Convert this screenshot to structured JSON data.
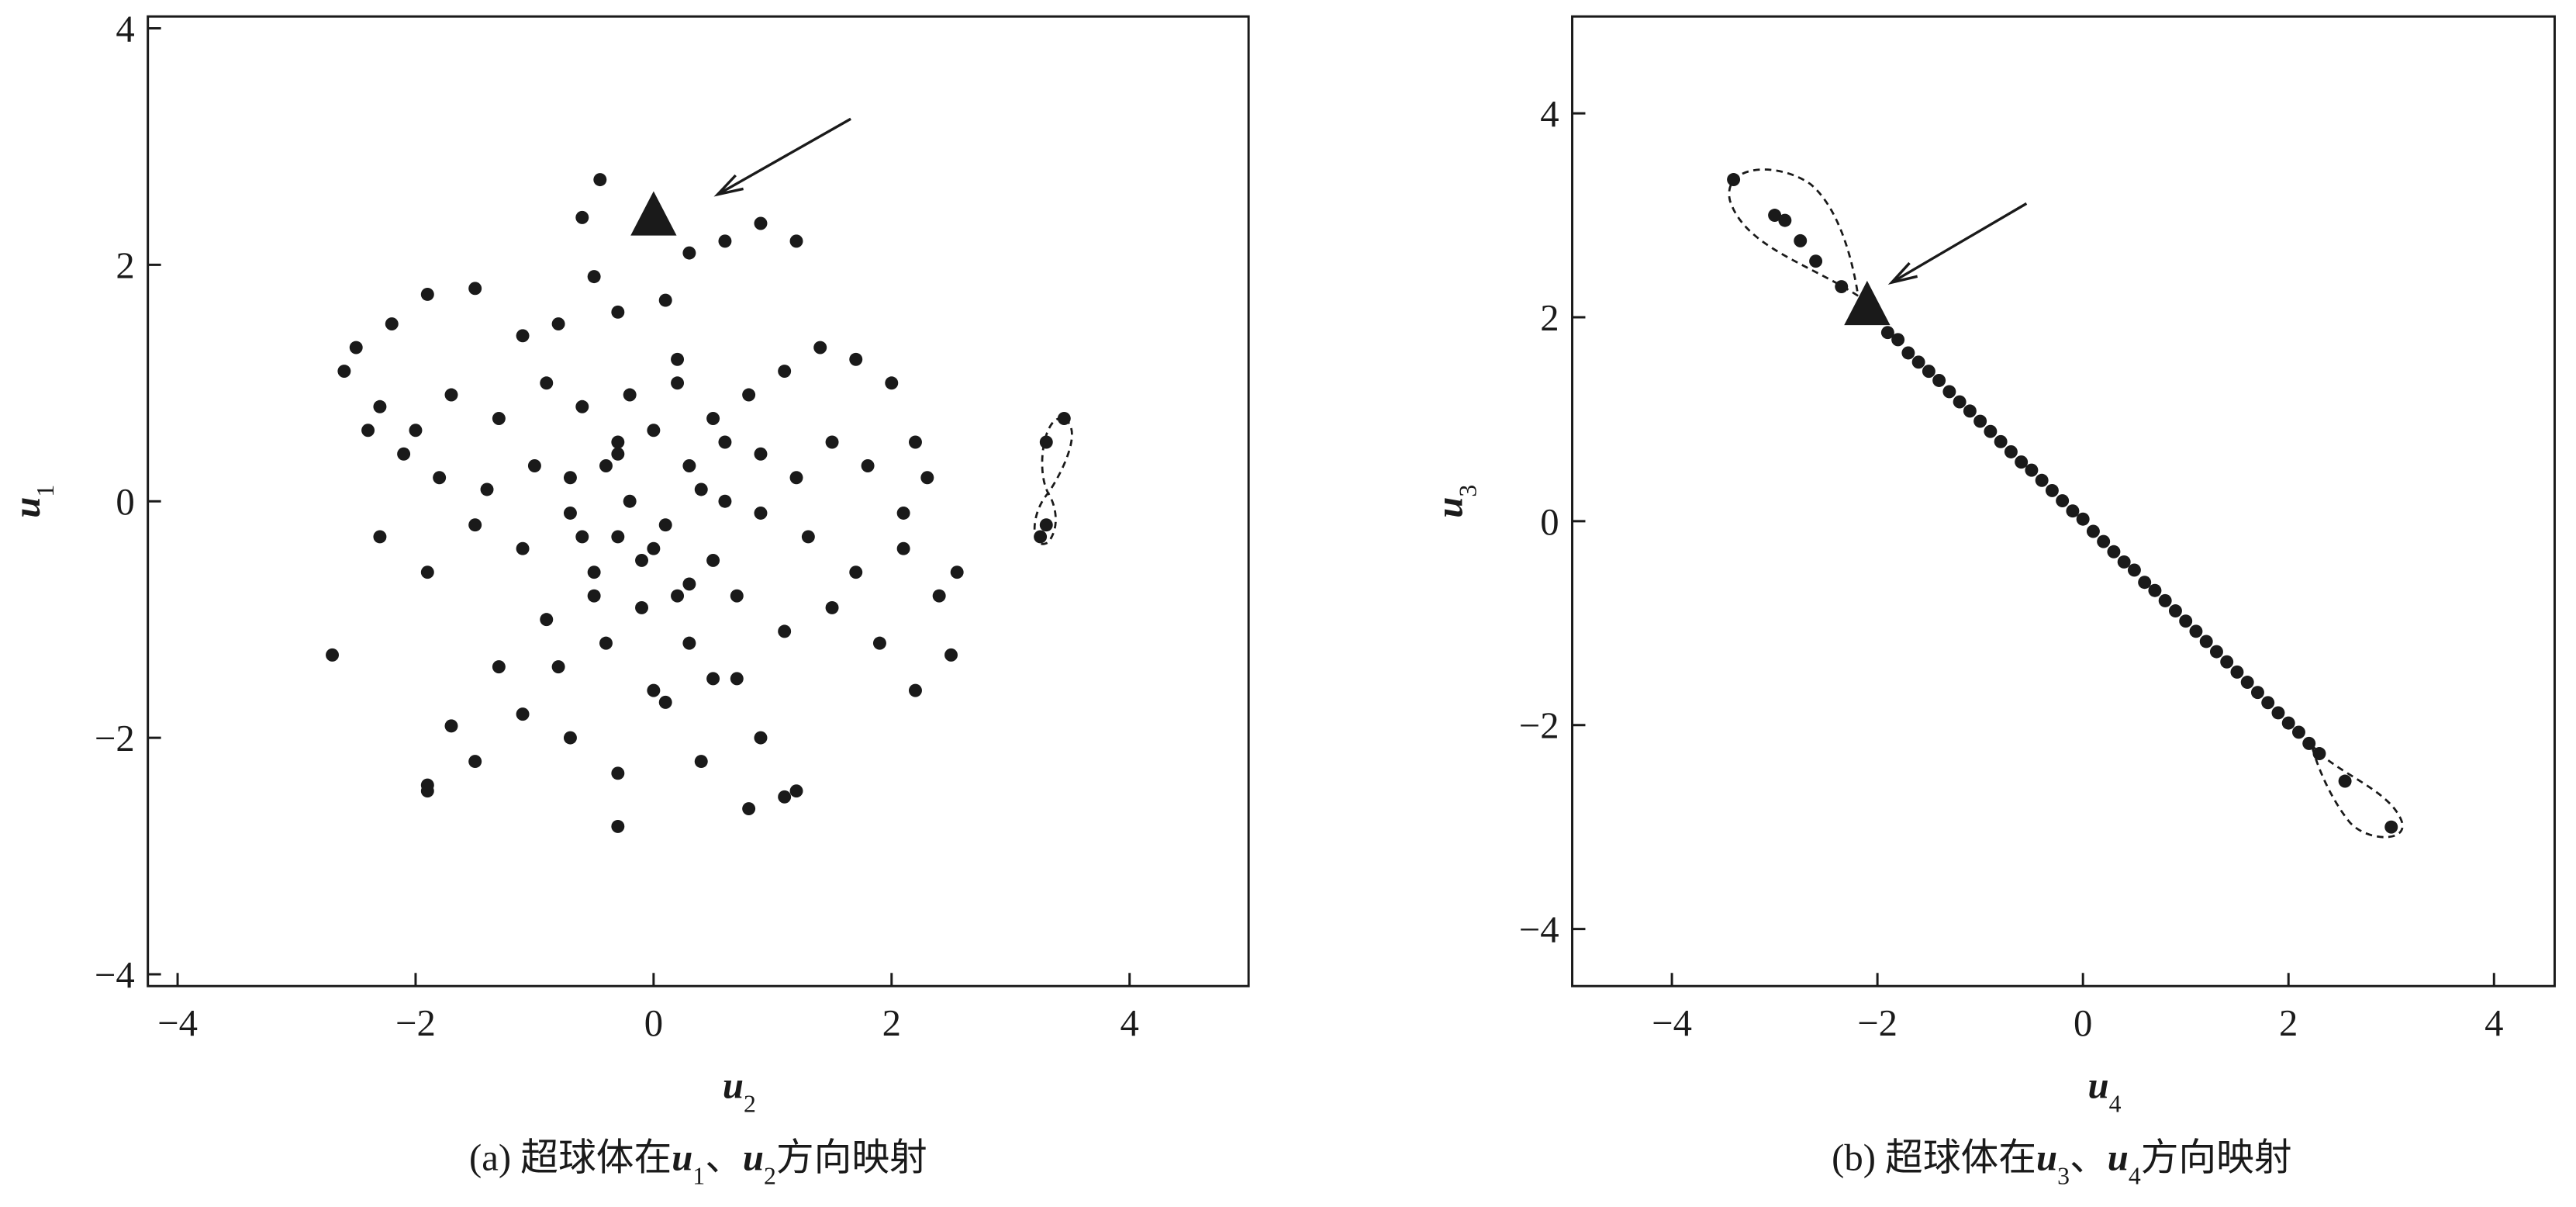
{
  "chart_data": [
    {
      "type": "scatter",
      "xlim": [
        -4.25,
        5
      ],
      "ylim": [
        -4.1,
        4.1
      ],
      "xticks": [
        {
          "value": -4,
          "label": "−4"
        },
        {
          "value": -2,
          "label": "−2"
        },
        0,
        2,
        4
      ],
      "yticks": [
        {
          "value": -4,
          "label": "−4"
        },
        {
          "value": -2,
          "label": "−2"
        },
        0,
        2,
        4
      ],
      "xlabel": [
        {
          "text": "u",
          "style": "var"
        },
        {
          "text": "2",
          "style": "sub"
        }
      ],
      "ylabel": [
        {
          "text": "u",
          "style": "var"
        },
        {
          "text": "1",
          "style": "sub"
        }
      ],
      "caption": [
        {
          "text": "(a) 超球体在",
          "style": "plain"
        },
        {
          "text": "u",
          "style": "var"
        },
        {
          "text": "1",
          "style": "sub"
        },
        {
          "text": "、",
          "style": "plain"
        },
        {
          "text": "u",
          "style": "var"
        },
        {
          "text": "2",
          "style": "sub"
        },
        {
          "text": "方向映射",
          "style": "plain"
        }
      ],
      "marker": {
        "x": 0,
        "y": 2.4,
        "shape": "triangle"
      },
      "series": [
        {
          "color": "#1a1a1a",
          "x": [
            -0.45,
            -0.6,
            -0.5,
            -0.3,
            0.1,
            0.3,
            0.6,
            0.9,
            1.2,
            0.2,
            -0.8,
            -1.1,
            -1.5,
            -1.9,
            -2.2,
            -2.5,
            -2.6,
            -2.3,
            -2.0,
            -1.7,
            -1.3,
            -0.9,
            -0.6,
            -0.2,
            0.2,
            0.5,
            0.8,
            1.1,
            1.4,
            1.7,
            2.0,
            2.2,
            2.3,
            2.1,
            1.8,
            1.5,
            1.2,
            0.9,
            0.6,
            0.3,
            0.0,
            -0.3,
            -0.7,
            -1.0,
            -1.4,
            -1.8,
            -2.1,
            -2.4,
            -2.7,
            -2.3,
            -1.9,
            -1.5,
            -1.1,
            -0.7,
            -0.3,
            0.1,
            0.5,
            0.9,
            1.3,
            1.7,
            2.1,
            2.4,
            2.5,
            2.2,
            1.9,
            1.5,
            1.1,
            0.7,
            0.3,
            -0.1,
            -0.5,
            -0.9,
            -1.3,
            -1.7,
            -1.9,
            -1.5,
            -1.1,
            -0.7,
            -0.3,
            0.1,
            0.5,
            0.9,
            1.2,
            0.8,
            0.4,
            0.0,
            -0.4,
            -0.8,
            -0.5,
            -0.1,
            0.3,
            0.7,
            -0.2,
            0.2,
            -0.6,
            0.6,
            -0.3,
            0.0,
            0.4,
            -0.4,
            3.3,
            3.45,
            3.25,
            3.3,
            -0.3,
            1.1,
            -1.9,
            2.55
          ],
          "values": [
            2.72,
            2.4,
            1.9,
            1.6,
            1.7,
            2.1,
            2.2,
            2.35,
            2.2,
            1.2,
            1.5,
            1.4,
            1.8,
            1.75,
            1.5,
            1.3,
            1.1,
            0.8,
            0.6,
            0.9,
            0.7,
            1.0,
            0.8,
            0.9,
            1.0,
            0.7,
            0.9,
            1.1,
            1.3,
            1.2,
            1.0,
            0.5,
            0.2,
            -0.1,
            0.3,
            0.5,
            0.2,
            0.4,
            0.5,
            0.3,
            0.6,
            0.4,
            0.2,
            0.3,
            0.1,
            0.2,
            0.4,
            0.6,
            -1.3,
            -0.3,
            -0.6,
            -0.2,
            -0.4,
            -0.1,
            -0.3,
            -0.2,
            -0.5,
            -0.1,
            -0.3,
            -0.6,
            -0.4,
            -0.8,
            -1.3,
            -1.6,
            -1.2,
            -0.9,
            -1.1,
            -0.8,
            -0.7,
            -0.9,
            -0.6,
            -1.0,
            -1.4,
            -1.9,
            -2.4,
            -2.2,
            -1.8,
            -2.0,
            -2.3,
            -1.7,
            -1.5,
            -2.0,
            -2.45,
            -2.6,
            -2.2,
            -1.6,
            -1.2,
            -1.4,
            -0.8,
            -0.5,
            -1.2,
            -1.5,
            0.0,
            -0.8,
            -0.3,
            0.0,
            0.5,
            -0.4,
            0.1,
            0.3,
            0.5,
            0.7,
            -0.3,
            -0.2,
            -2.75,
            -2.5,
            -2.45,
            -0.6
          ]
        }
      ]
    },
    {
      "type": "scatter",
      "xlim": [
        -4.97,
        4.59
      ],
      "ylim": [
        -4.56,
        4.95
      ],
      "xticks": [
        {
          "value": -4,
          "label": "−4"
        },
        {
          "value": -2,
          "label": "−2"
        },
        0,
        2,
        4
      ],
      "yticks": [
        {
          "value": -4,
          "label": "−4"
        },
        {
          "value": -2,
          "label": "−2"
        },
        0,
        2,
        4
      ],
      "xlabel": [
        {
          "text": "u",
          "style": "var"
        },
        {
          "text": "4",
          "style": "sub"
        }
      ],
      "ylabel": [
        {
          "text": "u",
          "style": "var"
        },
        {
          "text": "3",
          "style": "sub"
        }
      ],
      "caption": [
        {
          "text": "(b) 超球体在",
          "style": "plain"
        },
        {
          "text": "u",
          "style": "var"
        },
        {
          "text": "3",
          "style": "sub"
        },
        {
          "text": "、",
          "style": "plain"
        },
        {
          "text": "u",
          "style": "var"
        },
        {
          "text": "4",
          "style": "sub"
        },
        {
          "text": "方向映射",
          "style": "plain"
        }
      ],
      "marker": {
        "x": -2.1,
        "y": 2.1,
        "shape": "triangle"
      },
      "series": [
        {
          "color": "#1a1a1a",
          "x": [
            -3.4,
            -3.0,
            -2.9,
            -2.75,
            -2.6,
            -2.35,
            -1.9,
            -1.7,
            -1.5,
            -1.3,
            -1.1,
            -0.9,
            -0.7,
            -0.5,
            -0.3,
            -0.1,
            0.1,
            0.3,
            0.5,
            0.7,
            0.9,
            1.1,
            1.3,
            1.5,
            1.7,
            1.9,
            2.1,
            2.3,
            2.55,
            3.0,
            -1.8,
            -1.6,
            -1.4,
            -1.2,
            -1.0,
            -0.8,
            -0.6,
            -0.4,
            -0.2,
            0.0,
            0.2,
            0.4,
            0.6,
            0.8,
            1.0,
            1.2,
            1.4,
            1.6,
            1.8,
            2.0,
            2.2
          ],
          "values": [
            3.35,
            3.0,
            2.95,
            2.75,
            2.55,
            2.3,
            1.85,
            1.65,
            1.47,
            1.27,
            1.08,
            0.88,
            0.68,
            0.5,
            0.3,
            0.1,
            -0.1,
            -0.3,
            -0.48,
            -0.68,
            -0.88,
            -1.08,
            -1.28,
            -1.48,
            -1.68,
            -1.88,
            -2.07,
            -2.28,
            -2.55,
            -3.0,
            1.78,
            1.56,
            1.38,
            1.17,
            0.98,
            0.78,
            0.58,
            0.4,
            0.2,
            0.02,
            -0.2,
            -0.4,
            -0.6,
            -0.78,
            -0.98,
            -1.18,
            -1.38,
            -1.58,
            -1.78,
            -1.98,
            -2.18
          ]
        }
      ]
    }
  ]
}
